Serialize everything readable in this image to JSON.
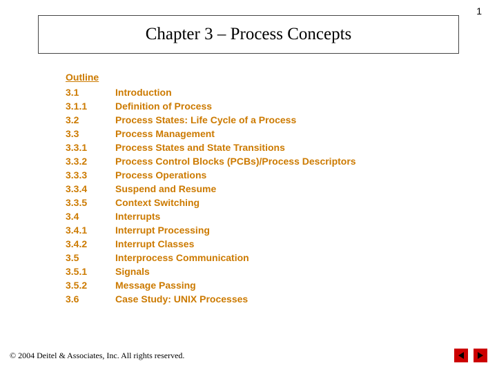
{
  "page_number": "1",
  "title": "Chapter 3 – Process Concepts",
  "outline_heading": "Outline",
  "text_color": "#cc7a00",
  "items": [
    {
      "num": "3.1",
      "title": "Introduction"
    },
    {
      "num": "3.1.1",
      "title": "Definition of Process"
    },
    {
      "num": "3.2",
      "title": "Process States: Life Cycle of a Process"
    },
    {
      "num": "3.3",
      "title": "Process Management"
    },
    {
      "num": "3.3.1",
      "title": "Process States and State Transitions"
    },
    {
      "num": "3.3.2",
      "title": "Process Control Blocks (PCBs)/Process Descriptors"
    },
    {
      "num": "3.3.3",
      "title": "Process Operations"
    },
    {
      "num": "3.3.4",
      "title": "Suspend and Resume"
    },
    {
      "num": "3.3.5",
      "title": "Context Switching"
    },
    {
      "num": "3.4",
      "title": "Interrupts"
    },
    {
      "num": "3.4.1",
      "title": "Interrupt Processing"
    },
    {
      "num": "3.4.2",
      "title": "Interrupt Classes"
    },
    {
      "num": "3.5",
      "title": "Interprocess Communication"
    },
    {
      "num": "3.5.1",
      "title": "Signals"
    },
    {
      "num": "3.5.2",
      "title": "Message Passing"
    },
    {
      "num": "3.6",
      "title": "Case Study: UNIX Processes"
    }
  ],
  "copyright": "© 2004 Deitel & Associates, Inc.  All rights reserved.",
  "nav": {
    "prev": "previous-slide",
    "next": "next-slide"
  }
}
